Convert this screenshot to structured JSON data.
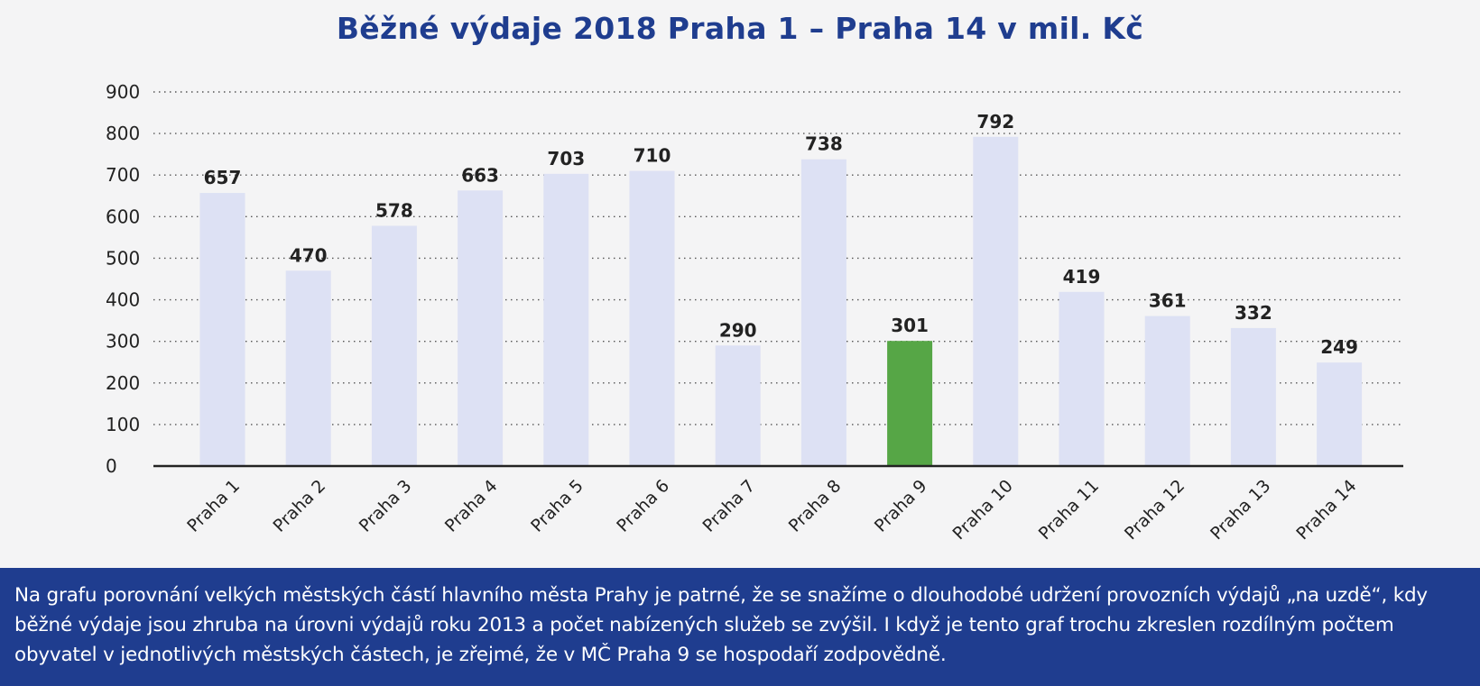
{
  "chart_data": {
    "type": "bar",
    "title": "Běžné výdaje 2018 Praha 1 – Praha 14 v mil. Kč",
    "categories": [
      "Praha 1",
      "Praha 2",
      "Praha 3",
      "Praha 4",
      "Praha 5",
      "Praha 6",
      "Praha 7",
      "Praha 8",
      "Praha 9",
      "Praha 10",
      "Praha 11",
      "Praha 12",
      "Praha 13",
      "Praha 14"
    ],
    "values": [
      657,
      470,
      578,
      663,
      703,
      710,
      290,
      738,
      301,
      792,
      419,
      361,
      332,
      249
    ],
    "data_labels": [
      "657",
      "470",
      "578",
      "663",
      "703",
      "710",
      "290",
      "738",
      "301",
      "792",
      "419",
      "361",
      "332",
      "249"
    ],
    "y_ticks": [
      "0",
      "100",
      "200",
      "300",
      "400",
      "500",
      "600",
      "700",
      "800",
      "900"
    ],
    "ylim": [
      0,
      900
    ],
    "grid": true,
    "bar_color": "#dde1f4",
    "highlight_color": "#56a646",
    "highlight_category": "Praha 9"
  },
  "caption": "Na grafu porovnání velkých městských částí hlavního města Prahy je patrné, že se snažíme o dlouhodobé udržení provozních výdajů „na uzdě“, kdy běžné výdaje jsou zhruba na úrovni výdajů roku 2013 a počet nabízených služeb se zvýšil. I když je tento graf trochu zkreslen rozdílným počtem obyvatel v jednotlivých městských částech, je zřejmé, že v MČ Praha 9 se hospodaří zodpovědně.",
  "colors": {
    "title": "#1f3d8f",
    "caption_background": "#1f3d8f",
    "panel_background": "#f4f4f5"
  }
}
